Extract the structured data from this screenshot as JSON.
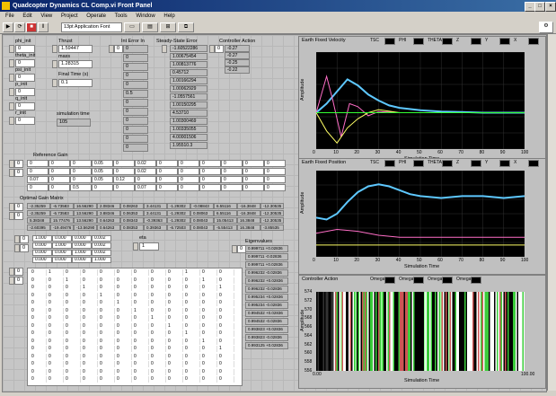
{
  "window": {
    "title": "Quadcopter Dynamics CL Comp.vi Front Panel"
  },
  "menu": [
    "File",
    "Edit",
    "View",
    "Project",
    "Operate",
    "Tools",
    "Window",
    "Help"
  ],
  "toolbar": {
    "font": "13pt Application Font"
  },
  "controls": {
    "phi_label": "phi_init",
    "phi_value": "0",
    "theta_label": "theta_init",
    "theta_value": "0",
    "psi_label": "psi_init",
    "psi_value": "0",
    "p_label": "p_init",
    "p_value": "0",
    "q_label": "q_init",
    "q_value": "0",
    "r_label": "r_init",
    "r_value": "0",
    "thrust_label": "Thrust",
    "thrust_value": "1.59447",
    "mass_label": "mass",
    "mass_value": "1.28315",
    "final_time_label": "Final Time (s)",
    "final_time_value": "0.1",
    "sim_time_label": "simulation time",
    "sim_time_value": "105",
    "index_value": "0"
  },
  "col_vector": {
    "label": "Int Error In",
    "values": [
      "0",
      "0",
      "0",
      "0",
      "0",
      "0.5",
      "0",
      "0",
      "0",
      "0",
      "0",
      "0"
    ]
  },
  "steady_state": {
    "label": "Steady-State Error",
    "values": [
      "-1.60522286",
      "1.00675454",
      "1.00813776",
      "0.45712",
      "1.00166294",
      "1.00062929",
      "-1.0557561",
      "1.00150295",
      "4.53710",
      "1.00300469",
      "1.00335055",
      "4.00001506",
      "1.95510.3"
    ]
  },
  "controller_action": {
    "label": "Controller Action",
    "index": "0",
    "values": [
      "-0.27",
      "-0.27",
      "-0.25",
      "-0.22"
    ]
  },
  "reference_gain": {
    "label": "Reference Gain",
    "row_indices": [
      "0",
      "0"
    ],
    "rows": [
      [
        "0",
        "0",
        "0",
        "0.05",
        "0",
        "0.02",
        "0",
        "0",
        "0",
        "0",
        "0",
        "0"
      ],
      [
        "0",
        "0",
        "0",
        "0.05",
        "0",
        "0.02",
        "0",
        "0",
        "0",
        "0",
        "0",
        "0"
      ],
      [
        "0.07",
        "0",
        "0",
        "0.05",
        "0.12",
        "0",
        "0",
        "0",
        "0",
        "0",
        "0",
        "0"
      ],
      [
        "0",
        "0",
        "0.5",
        "0",
        "0",
        "0.07",
        "0",
        "0",
        "0",
        "0",
        "0",
        "0"
      ]
    ]
  },
  "optimal_gain": {
    "label": "Optimal Gain Matrix",
    "row_indices": [
      "0",
      "0"
    ],
    "rows": [
      [
        "-2.35259",
        "-6.73583",
        "16.56290",
        "2.08346",
        "0.08263",
        "3.44131",
        "-1.29302",
        "-0.08843",
        "6.55116",
        "-16.3848",
        "-12.30535"
      ],
      [
        "-2.35259",
        "-6.73583",
        "13.56290",
        "3.88346",
        "0.06353",
        "3.44131",
        "-1.29302",
        "0.08063",
        "6.55116",
        "-16.3848",
        "-12.30535"
      ],
      [
        "5.38348",
        "15.77476",
        "13.56290",
        "0.64263",
        "0.08343",
        "-0.39363",
        "-1.29302",
        "0.08043",
        "15.05413",
        "16.3848",
        "-12.30535"
      ],
      [
        "-2.60395",
        "-19.49476",
        "-13.56290",
        "0.64263",
        "0.08353",
        "0.39363",
        "-6.72503",
        "0.08043",
        "-5.55413",
        "16.3848",
        "-3.85535"
      ]
    ]
  },
  "small_matrix": {
    "row_indices": [
      "0",
      "0"
    ],
    "rows": [
      [
        "1.000",
        "0.000",
        "0.000",
        "0.002"
      ],
      [
        "0.000",
        "1.000",
        "0.000",
        "0.002"
      ],
      [
        "0.000",
        "0.000",
        "1.000",
        "0.002"
      ],
      [
        "0.000",
        "0.000",
        "0.000",
        "1.000"
      ]
    ]
  },
  "alpha": {
    "label": "eta",
    "value": "1"
  },
  "eigenvalues": {
    "label": "Eigenvalues",
    "index": "0",
    "values": [
      "0.999711 +0.02836",
      "0.999711 -0.02836",
      "0.999711 +0.02836",
      "0.996232 -0.02836",
      "0.996232 +0.02836",
      "0.996232 -0.02836",
      "0.995234 +0.02836",
      "0.995234 -0.02836",
      "0.994532 +0.02836",
      "0.994532 -0.02836",
      "0.993823 +0.02836",
      "0.993823 -0.02836",
      "0.993125 +0.02836"
    ]
  },
  "big_matrix": {
    "row_indices": [
      "0",
      "0"
    ],
    "rows": [
      [
        "0",
        "1",
        "0",
        "0",
        "0",
        "0",
        "0",
        "0",
        "0",
        "1",
        "0",
        "0"
      ],
      [
        "0",
        "0",
        "1",
        "0",
        "0",
        "0",
        "0",
        "0",
        "0",
        "0",
        "1",
        "0"
      ],
      [
        "0",
        "0",
        "0",
        "1",
        "0",
        "0",
        "0",
        "0",
        "0",
        "0",
        "0",
        "1"
      ],
      [
        "0",
        "0",
        "0",
        "0",
        "1",
        "0",
        "0",
        "0",
        "0",
        "0",
        "0",
        "0"
      ],
      [
        "0",
        "0",
        "0",
        "0",
        "0",
        "1",
        "0",
        "0",
        "0",
        "0",
        "0",
        "0"
      ],
      [
        "0",
        "0",
        "0",
        "0",
        "0",
        "0",
        "1",
        "0",
        "0",
        "0",
        "0",
        "0"
      ],
      [
        "0",
        "0",
        "0",
        "0",
        "0",
        "0",
        "0",
        "1",
        "0",
        "0",
        "0",
        "0"
      ],
      [
        "0",
        "0",
        "0",
        "0",
        "0",
        "0",
        "0",
        "0",
        "1",
        "0",
        "0",
        "0"
      ],
      [
        "0",
        "0",
        "0",
        "0",
        "0",
        "0",
        "0",
        "0",
        "0",
        "1",
        "0",
        "0"
      ],
      [
        "0",
        "0",
        "0",
        "0",
        "0",
        "0",
        "0",
        "0",
        "0",
        "0",
        "1",
        "0"
      ],
      [
        "0",
        "0",
        "0",
        "0",
        "0",
        "0",
        "0",
        "0",
        "0",
        "0",
        "0",
        "1"
      ],
      [
        "0",
        "0",
        "0",
        "0",
        "0",
        "0",
        "0",
        "0",
        "0",
        "0",
        "0",
        "0"
      ],
      [
        "0",
        "0",
        "0",
        "0",
        "0",
        "0",
        "0",
        "0",
        "0",
        "0",
        "0",
        "0"
      ],
      [
        "0",
        "0",
        "0",
        "0",
        "0",
        "0",
        "0",
        "0",
        "0",
        "0",
        "0",
        "0"
      ],
      [
        "0",
        "0",
        "0",
        "0",
        "0",
        "0",
        "0",
        "0",
        "0",
        "0",
        "0",
        "0"
      ]
    ]
  },
  "colors": {
    "pink": "#ff6ec7",
    "cyan": "#5ec8ff",
    "yellow": "#ffff66",
    "green": "#33ff33",
    "red": "#ff5555",
    "white": "#ffffff"
  },
  "chart_data": [
    {
      "type": "line",
      "title": "Earth Fixed Velocity",
      "xlabel": "Simulation Time",
      "ylabel": "Amplitude",
      "xlim": [
        0,
        100
      ],
      "legend": [
        "TSC",
        "PHI",
        "THETA",
        "Z",
        "Y",
        "X"
      ],
      "xticks": [
        "0",
        "10",
        "20",
        "30",
        "40",
        "50",
        "60",
        "70",
        "80",
        "90",
        "100"
      ],
      "series": [
        {
          "name": "TSC",
          "color": "#5ec8ff",
          "x": [
            0,
            5,
            10,
            15,
            20,
            25,
            30,
            35,
            40,
            50,
            60,
            70,
            80,
            90,
            100
          ],
          "values": [
            0,
            0.15,
            0.35,
            0.55,
            0.45,
            0.3,
            0.2,
            0.12,
            0.08,
            0.04,
            0.02,
            0.01,
            0,
            0,
            0
          ]
        },
        {
          "name": "PHI",
          "color": "#ff6ec7",
          "x": [
            0,
            5,
            8,
            12,
            16,
            20,
            25,
            30,
            40,
            60,
            100
          ],
          "values": [
            0,
            0.6,
            0.2,
            -0.4,
            0.15,
            0.1,
            -0.05,
            0.02,
            0,
            0,
            0
          ]
        },
        {
          "name": "THETA",
          "color": "#ffff66",
          "x": [
            0,
            5,
            10,
            15,
            20,
            25,
            30,
            40,
            60,
            100
          ],
          "values": [
            0,
            -0.3,
            -0.5,
            -0.25,
            -0.1,
            0,
            0.05,
            0,
            0,
            0
          ]
        },
        {
          "name": "Z",
          "color": "#33ff33",
          "x": [
            0,
            20,
            40,
            60,
            80,
            100
          ],
          "values": [
            0,
            0,
            0,
            0,
            0,
            0
          ]
        }
      ]
    },
    {
      "type": "line",
      "title": "Earth Fixed Position",
      "xlabel": "Simulation Time",
      "ylabel": "Amplitude",
      "xlim": [
        0,
        100
      ],
      "legend": [
        "TSC",
        "PHI",
        "THETA",
        "Z",
        "Y",
        "X"
      ],
      "xticks": [
        "0",
        "10",
        "20",
        "30",
        "40",
        "50",
        "60",
        "70",
        "80",
        "90",
        "100"
      ],
      "series": [
        {
          "name": "TSC",
          "color": "#5ec8ff",
          "x": [
            0,
            5,
            10,
            15,
            20,
            25,
            30,
            35,
            40,
            45,
            50,
            60,
            70,
            80,
            90,
            100
          ],
          "values": [
            1.0,
            0.95,
            1.1,
            1.4,
            1.65,
            1.8,
            1.85,
            1.8,
            1.7,
            1.6,
            1.55,
            1.5,
            1.55,
            1.55,
            1.5,
            1.55
          ]
        },
        {
          "name": "PHI",
          "color": "#ff6ec7",
          "x": [
            0,
            10,
            20,
            30,
            40,
            60,
            80,
            100
          ],
          "values": [
            0.6,
            0.7,
            0.65,
            0.55,
            0.5,
            0.5,
            0.5,
            0.5
          ]
        },
        {
          "name": "THETA",
          "color": "#ffff66",
          "x": [
            0,
            100
          ],
          "values": [
            0.3,
            0.3
          ]
        }
      ]
    },
    {
      "type": "bar",
      "title": "Controller Action",
      "xlabel": "Simulation Time",
      "ylabel": "Amplitude",
      "xlim": [
        0,
        100
      ],
      "legend": [
        "Omega 3",
        "Omega 1",
        "Omega 2",
        "Omega 4"
      ],
      "xticks": [
        "0.00",
        "100.00"
      ],
      "yticks": [
        "574",
        "572",
        "570",
        "568",
        "566",
        "564",
        "562",
        "560",
        "558",
        "556"
      ]
    }
  ]
}
